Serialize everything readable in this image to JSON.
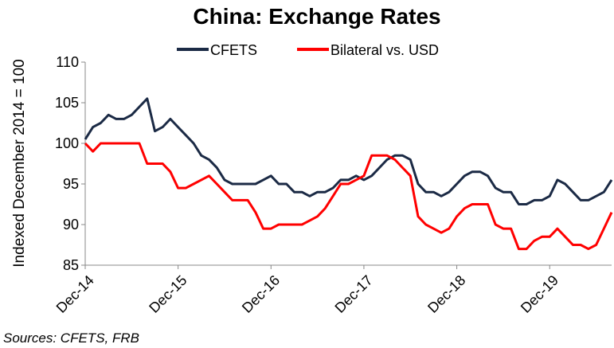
{
  "chart_data": {
    "type": "line",
    "title": "China: Exchange Rates",
    "y_label": "Indexed December 2014 = 100",
    "source": "Sources: CFETS, FRB",
    "categories": [
      "Dec-14",
      null,
      null,
      null,
      null,
      null,
      null,
      null,
      null,
      null,
      null,
      null,
      "Dec-15",
      null,
      null,
      null,
      null,
      null,
      null,
      null,
      null,
      null,
      null,
      null,
      "Dec-16",
      null,
      null,
      null,
      null,
      null,
      null,
      null,
      null,
      null,
      null,
      null,
      "Dec-17",
      null,
      null,
      null,
      null,
      null,
      null,
      null,
      null,
      null,
      null,
      null,
      "Dec-18",
      null,
      null,
      null,
      null,
      null,
      null,
      null,
      null,
      null,
      null,
      null,
      "Dec-19",
      null,
      null,
      null,
      null,
      null,
      null,
      null,
      null
    ],
    "series": [
      {
        "name": "CFETS",
        "color": "#1b2a45",
        "values": [
          100.5,
          102,
          102.5,
          103.5,
          103,
          103,
          103.5,
          104.5,
          105.5,
          101.5,
          102,
          103,
          102,
          101,
          100,
          98.5,
          98,
          97,
          95.5,
          95,
          95,
          95,
          95,
          95.5,
          96,
          95,
          95,
          94,
          94,
          93.5,
          94,
          94,
          94.5,
          95.5,
          95.5,
          96,
          95.5,
          96,
          97,
          98,
          98.5,
          98.5,
          98,
          95,
          94,
          94,
          93.5,
          94,
          95,
          96,
          96.5,
          96.5,
          96,
          94.5,
          94,
          94,
          92.5,
          92.5,
          93,
          93,
          93.5,
          95.5,
          95,
          94,
          93,
          93,
          93.5,
          94,
          95.5
        ]
      },
      {
        "name": "Bilateral vs. USD",
        "color": "#ff0000",
        "values": [
          100,
          99,
          100,
          100,
          100,
          100,
          100,
          100,
          97.5,
          97.5,
          97.5,
          96.5,
          94.5,
          94.5,
          95,
          95.5,
          96,
          95,
          94,
          93,
          93,
          93,
          91.5,
          89.5,
          89.5,
          90,
          90,
          90,
          90,
          90.5,
          91,
          92,
          93.5,
          95,
          95,
          95.5,
          96,
          98.5,
          98.5,
          98.5,
          98,
          97,
          96,
          91,
          90,
          89.5,
          89,
          89.5,
          91,
          92,
          92.5,
          92.5,
          92.5,
          90,
          89.5,
          89.5,
          87,
          87,
          88,
          88.5,
          88.5,
          89.5,
          88.5,
          87.5,
          87.5,
          87,
          87.5,
          89.5,
          91.5
        ]
      }
    ],
    "ylim": [
      85,
      110
    ],
    "yticks": [
      85,
      90,
      95,
      100,
      105,
      110
    ],
    "grid": false
  }
}
